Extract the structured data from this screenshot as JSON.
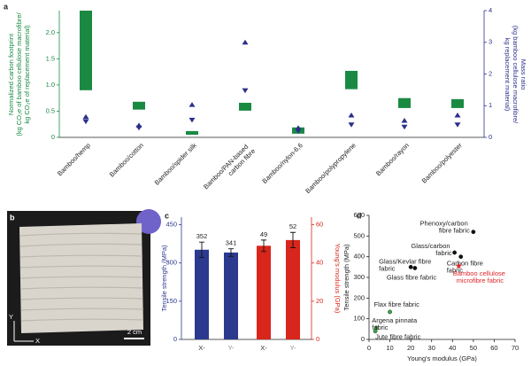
{
  "chart_data": [
    {
      "type": "range_bar",
      "panel": "a",
      "categories": [
        "Bamboo/hemp",
        "Bamboo/cotton",
        "Bamboo/spider silk",
        "Bamboo/PAN-based carbon fibre",
        "Bamboo/nylon-6,6",
        "Bamboo/polypropylene",
        "Bamboo/rayon",
        "Bamboo/polyester"
      ],
      "low": [
        0.9,
        0.53,
        0.05,
        0.51,
        0.07,
        0.92,
        0.56,
        0.56
      ],
      "high": [
        2.42,
        0.68,
        0.12,
        0.66,
        0.19,
        1.27,
        0.75,
        0.73
      ],
      "color": "#1a8a43",
      "series": [
        {
          "color": "#2b2f8c",
          "marker": "triangle-up",
          "axis": "y2",
          "values": [
            0.65,
            0.38,
            1.03,
            3.0,
            0.3,
            0.7,
            0.53,
            0.7
          ]
        },
        {
          "color": "#2b2f8c",
          "marker": "triangle-down",
          "axis": "y2",
          "values": [
            0.5,
            0.3,
            0.55,
            1.48,
            0.2,
            0.4,
            0.33,
            0.4
          ]
        }
      ],
      "ylabel": [
        "Normalized carbon footprint",
        "(kg CO₂e of bamboo cellulose macrofibre/",
        "kg CO₂e of replacement material)"
      ],
      "y2label": [
        "Mass ratio",
        "(kg bamboo cellulose macrofibre/",
        "kg replacement material)"
      ],
      "ylim": [
        0,
        2.42
      ],
      "yticks": [
        0,
        0.5,
        {
          "value": 1,
          "label": "1.0"
        },
        1.5,
        {
          "value": 2,
          "label": "2.0"
        }
      ],
      "y2lim": [
        0,
        4
      ],
      "y2ticks": [
        0,
        1,
        2,
        3,
        4
      ]
    },
    {
      "type": "photo",
      "panel": "b",
      "scale_bar": "2 cm",
      "axis_y": "Y",
      "axis_x": "X"
    },
    {
      "type": "bar",
      "panel": "c",
      "categories": [
        "X-",
        "Y-"
      ],
      "category_colors": [
        "#333333",
        "#8a8a8a"
      ],
      "series": [
        {
          "color": "#2b3a8f",
          "values": [
            352,
            341
          ],
          "errors": [
            30,
            15
          ]
        },
        {
          "color": "#d9261c",
          "values": [
            49,
            52
          ],
          "errors": [
            3,
            4
          ],
          "axis": "y2"
        }
      ],
      "ylabel": "Tensile strength (MPa)",
      "y2label": "Young's modulus (GPa)",
      "ylim": [
        0,
        480
      ],
      "yticks": [
        0,
        150,
        300,
        450
      ],
      "y2lim": [
        0,
        64
      ],
      "y2ticks": [
        0,
        20,
        40,
        60
      ]
    },
    {
      "type": "scatter",
      "panel": "d",
      "x": [
        50,
        41,
        44,
        43,
        20,
        22,
        10,
        3.5,
        3
      ],
      "y": [
        520,
        420,
        400,
        355,
        350,
        345,
        133,
        56,
        40
      ],
      "labels": [
        "Phenoxy/carbon fibre fabric",
        "Glass/carbon fabric",
        "Carbon fibre fabric",
        "Bamboo cellulose microfibre fabric",
        "Glass/Kevlar fibre fabric",
        "Glass fibre fabric",
        "Flax fibre fabric",
        "Argena pinnata fabric",
        "Jute fibre fabric"
      ],
      "colors": [
        "#111111",
        "#111111",
        "#111111",
        "#e0262b",
        "#111111",
        "#111111",
        "#3aa648",
        "#3aa648",
        "#3aa648"
      ],
      "markers": [
        "circle",
        "circle",
        "circle",
        "star",
        "circle",
        "circle",
        "circle",
        "circle",
        "circle"
      ],
      "xlabel": "Young's modulus (GPa)",
      "ylabel": "Tensile strength (MPa)",
      "xlim": [
        0,
        70
      ],
      "xticks": [
        0,
        10,
        20,
        30,
        40,
        50,
        60,
        70
      ],
      "ylim": [
        0,
        600
      ],
      "yticks": [
        0,
        100,
        200,
        300,
        400,
        500,
        600
      ]
    }
  ]
}
